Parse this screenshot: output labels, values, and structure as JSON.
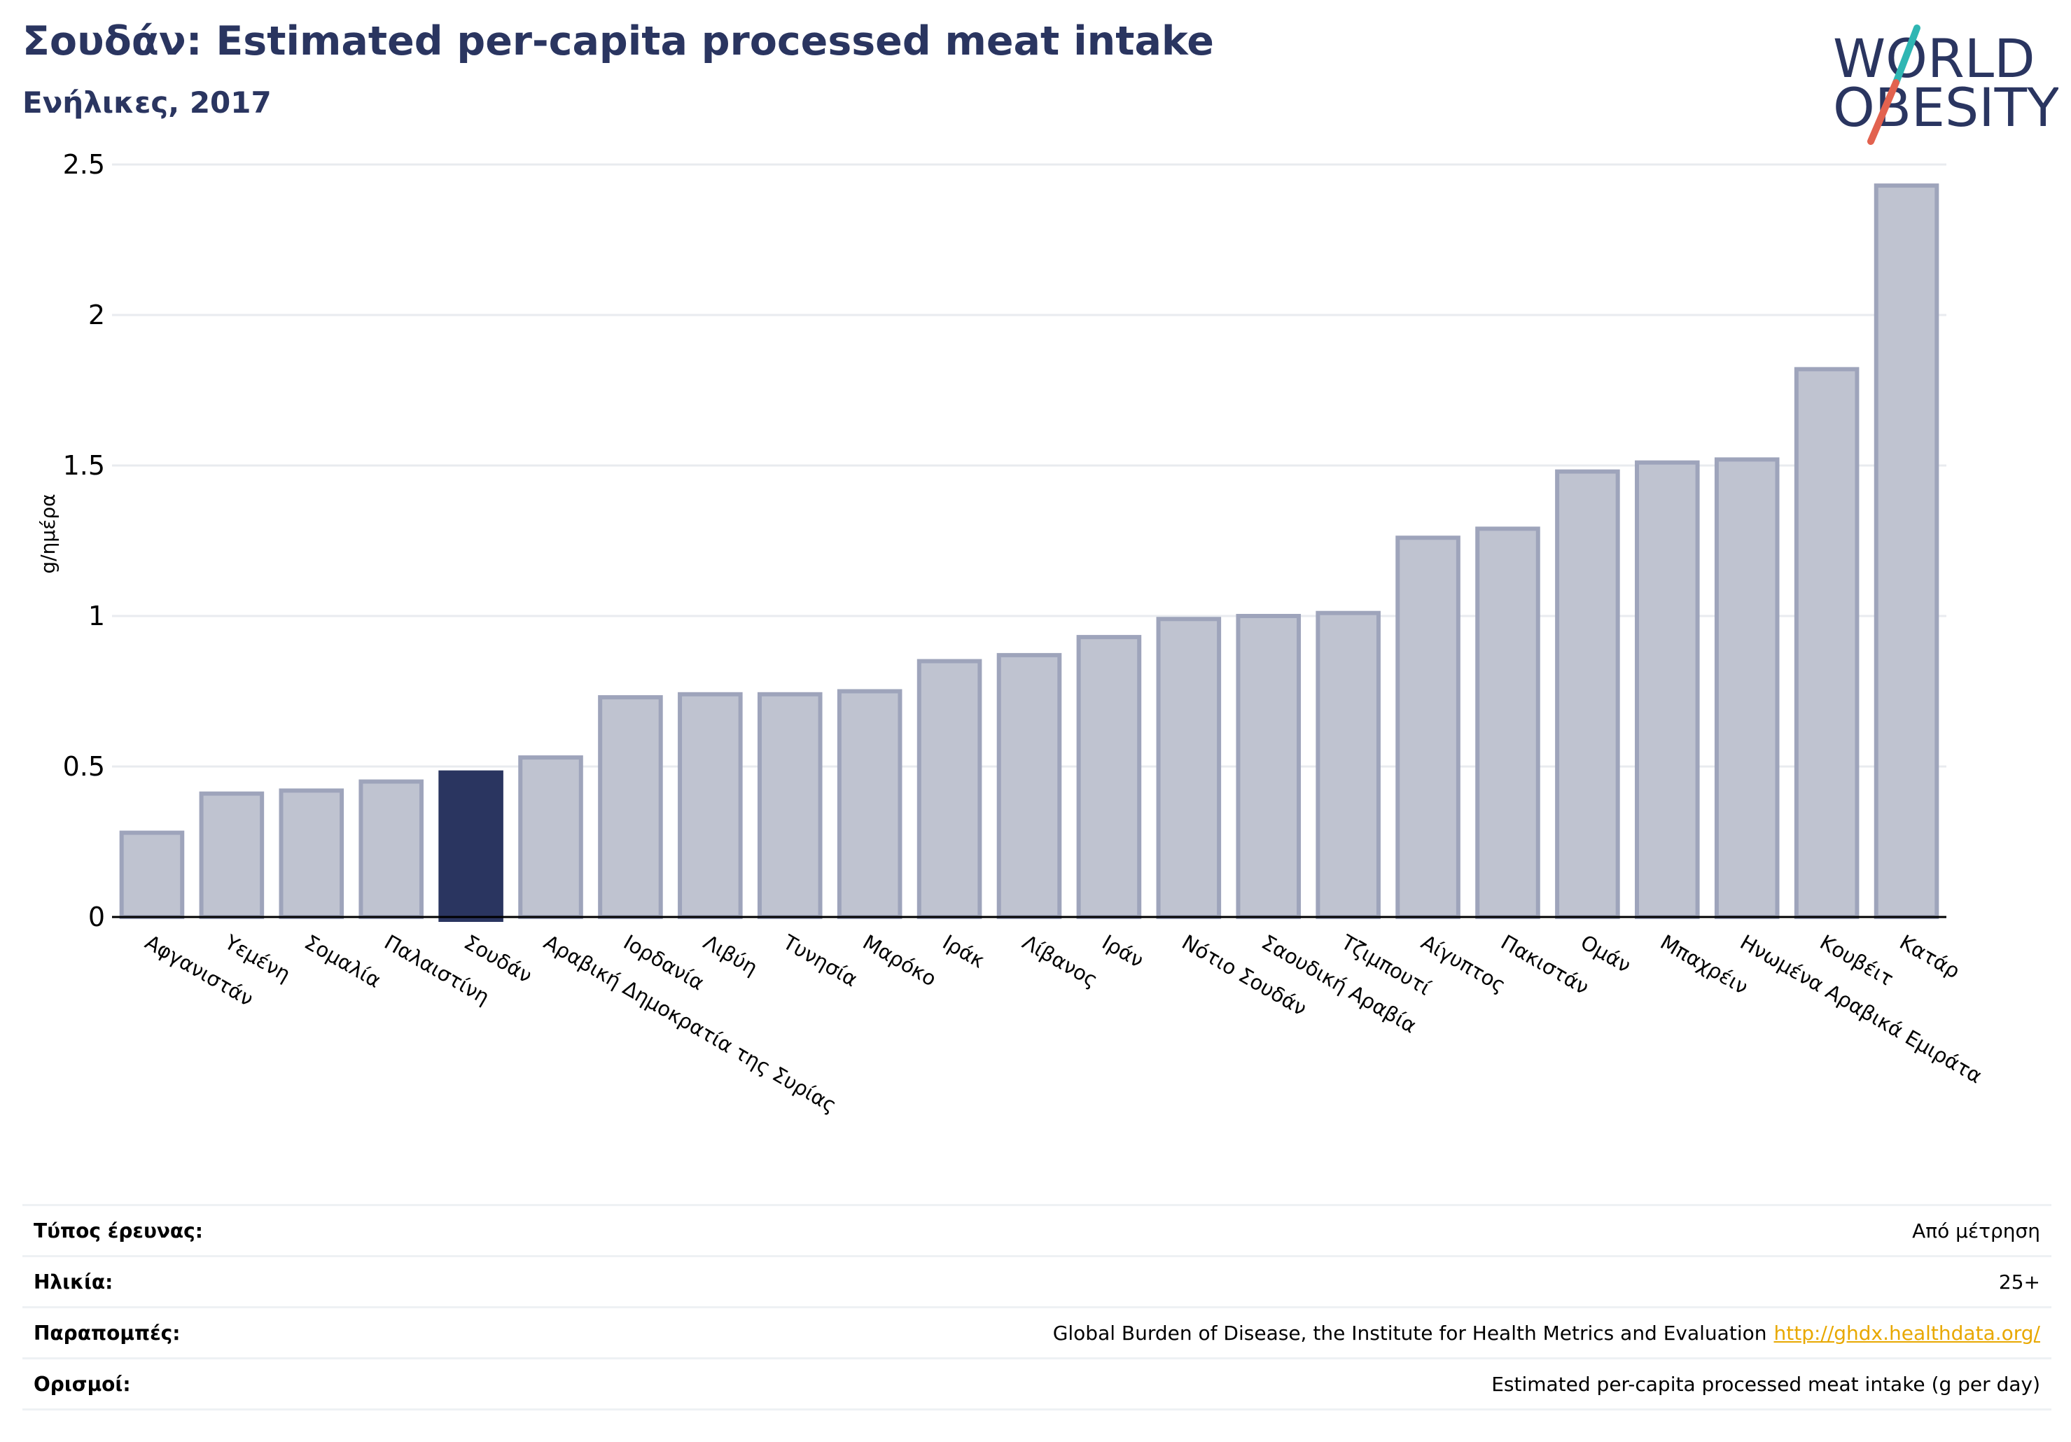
{
  "header": {
    "title": "Σουδάν: Estimated per-capita processed meat intake",
    "subtitle": "Ενήλικες, 2017"
  },
  "logo": {
    "line1": "WORLD",
    "line2": "OBESITY"
  },
  "chart_data": {
    "type": "bar",
    "ylabel": "g/ημέρα",
    "ylim": [
      0,
      2.5
    ],
    "yticks": [
      "0",
      "0.5",
      "1",
      "1.5",
      "2",
      "2.5"
    ],
    "grid": true,
    "highlight": "Σουδάν",
    "colors": {
      "bar": "#bfc3d0",
      "bar_edge": "#9ea4bb",
      "highlight": "#2a3560"
    },
    "categories": [
      "Αφγανιστάν",
      "Υεμένη",
      "Σομαλία",
      "Παλαιστίνη",
      "Σουδάν",
      "Αραβική Δημοκρατία της Συρίας",
      "Ιορδανία",
      "Λιβύη",
      "Τυνησία",
      "Μαρόκο",
      "Ιράκ",
      "Λίβανος",
      "Ιράν",
      "Νότιο Σουδάν",
      "Σαουδική Αραβία",
      "Τζιμπουτί",
      "Αίγυπτος",
      "Πακιστάν",
      "Ομάν",
      "Μπαχρέιν",
      "Ηνωμένα Αραβικά Εμιράτα",
      "Κουβέιτ",
      "Κατάρ"
    ],
    "values": [
      0.28,
      0.41,
      0.42,
      0.45,
      0.48,
      0.53,
      0.73,
      0.74,
      0.74,
      0.75,
      0.85,
      0.87,
      0.93,
      0.99,
      1.0,
      1.01,
      1.26,
      1.29,
      1.48,
      1.51,
      1.52,
      1.82,
      2.43
    ]
  },
  "info": {
    "survey_type_label": "Τύπος έρευνας:",
    "survey_type_value": "Από μέτρηση",
    "age_label": "Ηλικία:",
    "age_value": "25+",
    "refs_label": "Παραπομπές:",
    "refs_value": "Global Burden of Disease, the Institute for Health Metrics and Evaluation",
    "refs_link": "http://ghdx.healthdata.org/",
    "definitions_label": "Ορισμοί:",
    "definitions_value": "Estimated per-capita processed meat intake (g per day)"
  }
}
